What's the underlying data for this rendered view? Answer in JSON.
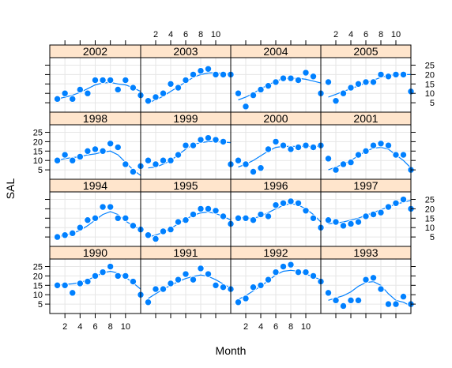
{
  "chart_data": {
    "type": "scatter",
    "layout": "lattice 4 columns x 4 rows, panels ordered bottom-left to top-right",
    "xlabel": "Month",
    "ylabel": "SAL",
    "xlim": [
      0,
      12
    ],
    "ylim": [
      0,
      29
    ],
    "x_ticks": [
      2,
      4,
      6,
      8,
      10
    ],
    "y_ticks": [
      5,
      10,
      15,
      20,
      25
    ],
    "grid": true,
    "smooth_line": true,
    "colors": {
      "points": "#0080ff",
      "point_outline": "#ffffff",
      "line": "#0080ff",
      "strip_fill": "#ffe5cc",
      "panel_border": "#000000",
      "grid": "#e6e6e6"
    },
    "panels": [
      {
        "year": "1990",
        "x": [
          1,
          2,
          3,
          4,
          5,
          6,
          7,
          8,
          9,
          10,
          11,
          12
        ],
        "y": [
          15,
          15,
          11,
          16,
          17,
          20,
          22,
          25,
          20,
          20,
          17,
          10
        ],
        "fit": [
          15,
          15.5,
          15.8,
          16.5,
          17.8,
          19.7,
          21.6,
          22.5,
          21.5,
          19.3,
          16.3,
          13
        ]
      },
      {
        "year": "1991",
        "x": [
          1,
          2,
          3,
          4,
          5,
          6,
          7,
          8,
          9,
          10,
          11,
          12
        ],
        "y": [
          6,
          13,
          13,
          16,
          18,
          21,
          18,
          24,
          21,
          15,
          14,
          13
        ],
        "fit": [
          8,
          10.5,
          13,
          15,
          17,
          18.6,
          19.7,
          20.5,
          19.8,
          18,
          15.7,
          13.5
        ]
      },
      {
        "year": "1992",
        "x": [
          1,
          2,
          3,
          4,
          5,
          6,
          7,
          8,
          9,
          10,
          11,
          12
        ],
        "y": [
          6,
          8,
          14,
          15,
          18,
          22,
          25,
          26,
          22,
          22,
          20,
          17
        ],
        "fit": [
          7.5,
          9.5,
          12,
          14.5,
          17.5,
          20.5,
          22.5,
          23,
          22.5,
          21,
          19.5,
          18
        ]
      },
      {
        "year": "1993",
        "x": [
          1,
          2,
          3,
          4,
          5,
          6,
          7,
          8,
          9,
          10,
          11,
          12
        ],
        "y": [
          11,
          7,
          4,
          7,
          7,
          18,
          19,
          13,
          5,
          5,
          9,
          5
        ],
        "fit": [
          7,
          8.3,
          9.5,
          11.5,
          14.5,
          16.5,
          17,
          15,
          10.5,
          7,
          6,
          4
        ]
      },
      {
        "year": "1994",
        "x": [
          1,
          2,
          3,
          4,
          5,
          6,
          7,
          8,
          9,
          10,
          11,
          12
        ],
        "y": [
          5,
          6,
          7,
          10,
          14,
          15,
          21,
          21,
          15,
          15,
          11,
          9
        ],
        "fit": [
          5,
          6,
          7,
          8.5,
          11,
          14,
          17,
          18.5,
          17,
          13.5,
          11,
          9
        ]
      },
      {
        "year": "1995",
        "x": [
          1,
          2,
          3,
          4,
          5,
          6,
          7,
          8,
          9,
          10,
          11,
          12
        ],
        "y": [
          6,
          4,
          8,
          9,
          13,
          14,
          17,
          20,
          20,
          19,
          16,
          12
        ],
        "fit": [
          5,
          6,
          7.5,
          9.5,
          12,
          14.5,
          16.5,
          17.8,
          18.3,
          17.5,
          16,
          14
        ]
      },
      {
        "year": "1996",
        "x": [
          1,
          2,
          3,
          4,
          5,
          6,
          7,
          8,
          9,
          10,
          11,
          12
        ],
        "y": [
          15,
          15,
          14,
          17,
          16,
          22,
          23,
          24,
          23,
          19,
          15,
          10
        ],
        "fit": [
          15.5,
          15,
          15,
          16,
          18,
          20,
          21.8,
          22.8,
          22,
          20,
          17,
          13
        ]
      },
      {
        "year": "1997",
        "x": [
          1,
          2,
          3,
          4,
          5,
          6,
          7,
          8,
          9,
          10,
          11,
          12
        ],
        "y": [
          14,
          13,
          11,
          12,
          13,
          16,
          17,
          18,
          21,
          23,
          25,
          20
        ],
        "fit": [
          12,
          12.5,
          13,
          14,
          15,
          16.5,
          18,
          19.5,
          21,
          22.5,
          23.5,
          24.5
        ]
      },
      {
        "year": "1998",
        "x": [
          1,
          2,
          3,
          4,
          5,
          6,
          7,
          8,
          9,
          10,
          11,
          12
        ],
        "y": [
          10,
          13,
          10,
          12,
          15,
          16,
          15,
          19,
          17,
          8,
          4,
          7
        ],
        "fit": [
          10,
          11,
          11.5,
          12,
          13,
          13.5,
          14.5,
          15,
          13,
          9,
          5,
          2
        ]
      },
      {
        "year": "1999",
        "x": [
          1,
          2,
          3,
          4,
          5,
          6,
          7,
          8,
          9,
          10,
          11,
          12
        ],
        "y": [
          10,
          8,
          10,
          10,
          13,
          18,
          18,
          21,
          22,
          21,
          20,
          8
        ],
        "fit": [
          6,
          6.5,
          8,
          10,
          13,
          16,
          18.5,
          19.5,
          20,
          20,
          19.8,
          19.5
        ]
      },
      {
        "year": "2000",
        "x": [
          1,
          2,
          3,
          4,
          5,
          6,
          7,
          8,
          9,
          10,
          11,
          12
        ],
        "y": [
          10,
          8,
          4,
          6,
          16,
          20,
          18,
          16,
          17,
          18,
          17,
          18
        ],
        "fit": [
          6.5,
          8,
          10,
          12.5,
          15,
          17,
          17.5,
          17.5,
          17.5,
          17.5,
          17.5,
          17.5
        ]
      },
      {
        "year": "2001",
        "x": [
          1,
          2,
          3,
          4,
          5,
          6,
          7,
          8,
          9,
          10,
          11,
          12
        ],
        "y": [
          11,
          5,
          8,
          9,
          13,
          15,
          18,
          19,
          18,
          13,
          13,
          5
        ],
        "fit": [
          5,
          6.5,
          8,
          10,
          12.5,
          15,
          16.5,
          17,
          16,
          13,
          10,
          6
        ]
      },
      {
        "year": "2002",
        "x": [
          1,
          2,
          3,
          4,
          5,
          6,
          7,
          8,
          9,
          10,
          11,
          12
        ],
        "y": [
          7,
          10,
          7,
          12,
          10,
          17,
          17,
          17,
          12,
          17,
          13,
          9
        ],
        "fit": [
          7,
          8,
          9,
          10.5,
          12.5,
          14.5,
          15.5,
          15.8,
          15,
          14.5,
          13,
          11
        ]
      },
      {
        "year": "2003",
        "x": [
          1,
          2,
          3,
          4,
          5,
          6,
          7,
          8,
          9,
          10,
          11,
          12
        ],
        "y": [
          6,
          8,
          10,
          15,
          13,
          17,
          20,
          22,
          23,
          20,
          20,
          20
        ],
        "fit": [
          5,
          6.5,
          8.5,
          11,
          13.5,
          16,
          18.5,
          20,
          20.8,
          21,
          20.5,
          20
        ]
      },
      {
        "year": "2004",
        "x": [
          1,
          2,
          3,
          4,
          5,
          6,
          7,
          8,
          9,
          10,
          11,
          12
        ],
        "y": [
          10,
          3,
          9,
          12,
          14,
          16,
          18,
          18,
          17,
          21,
          19,
          10
        ],
        "fit": [
          6.5,
          8,
          10,
          12.5,
          14.5,
          16.5,
          17.8,
          18,
          18,
          17.5,
          16.5,
          15.5
        ]
      },
      {
        "year": "2005",
        "x": [
          1,
          2,
          3,
          4,
          5,
          6,
          7,
          8,
          9,
          10,
          11,
          12
        ],
        "y": [
          16,
          6,
          10,
          13,
          15,
          16,
          16,
          20,
          19,
          20,
          20,
          11
        ],
        "fit": [
          8,
          9.5,
          11,
          12.5,
          14,
          15.5,
          17,
          18.5,
          19.5,
          20,
          20,
          20
        ]
      }
    ]
  }
}
